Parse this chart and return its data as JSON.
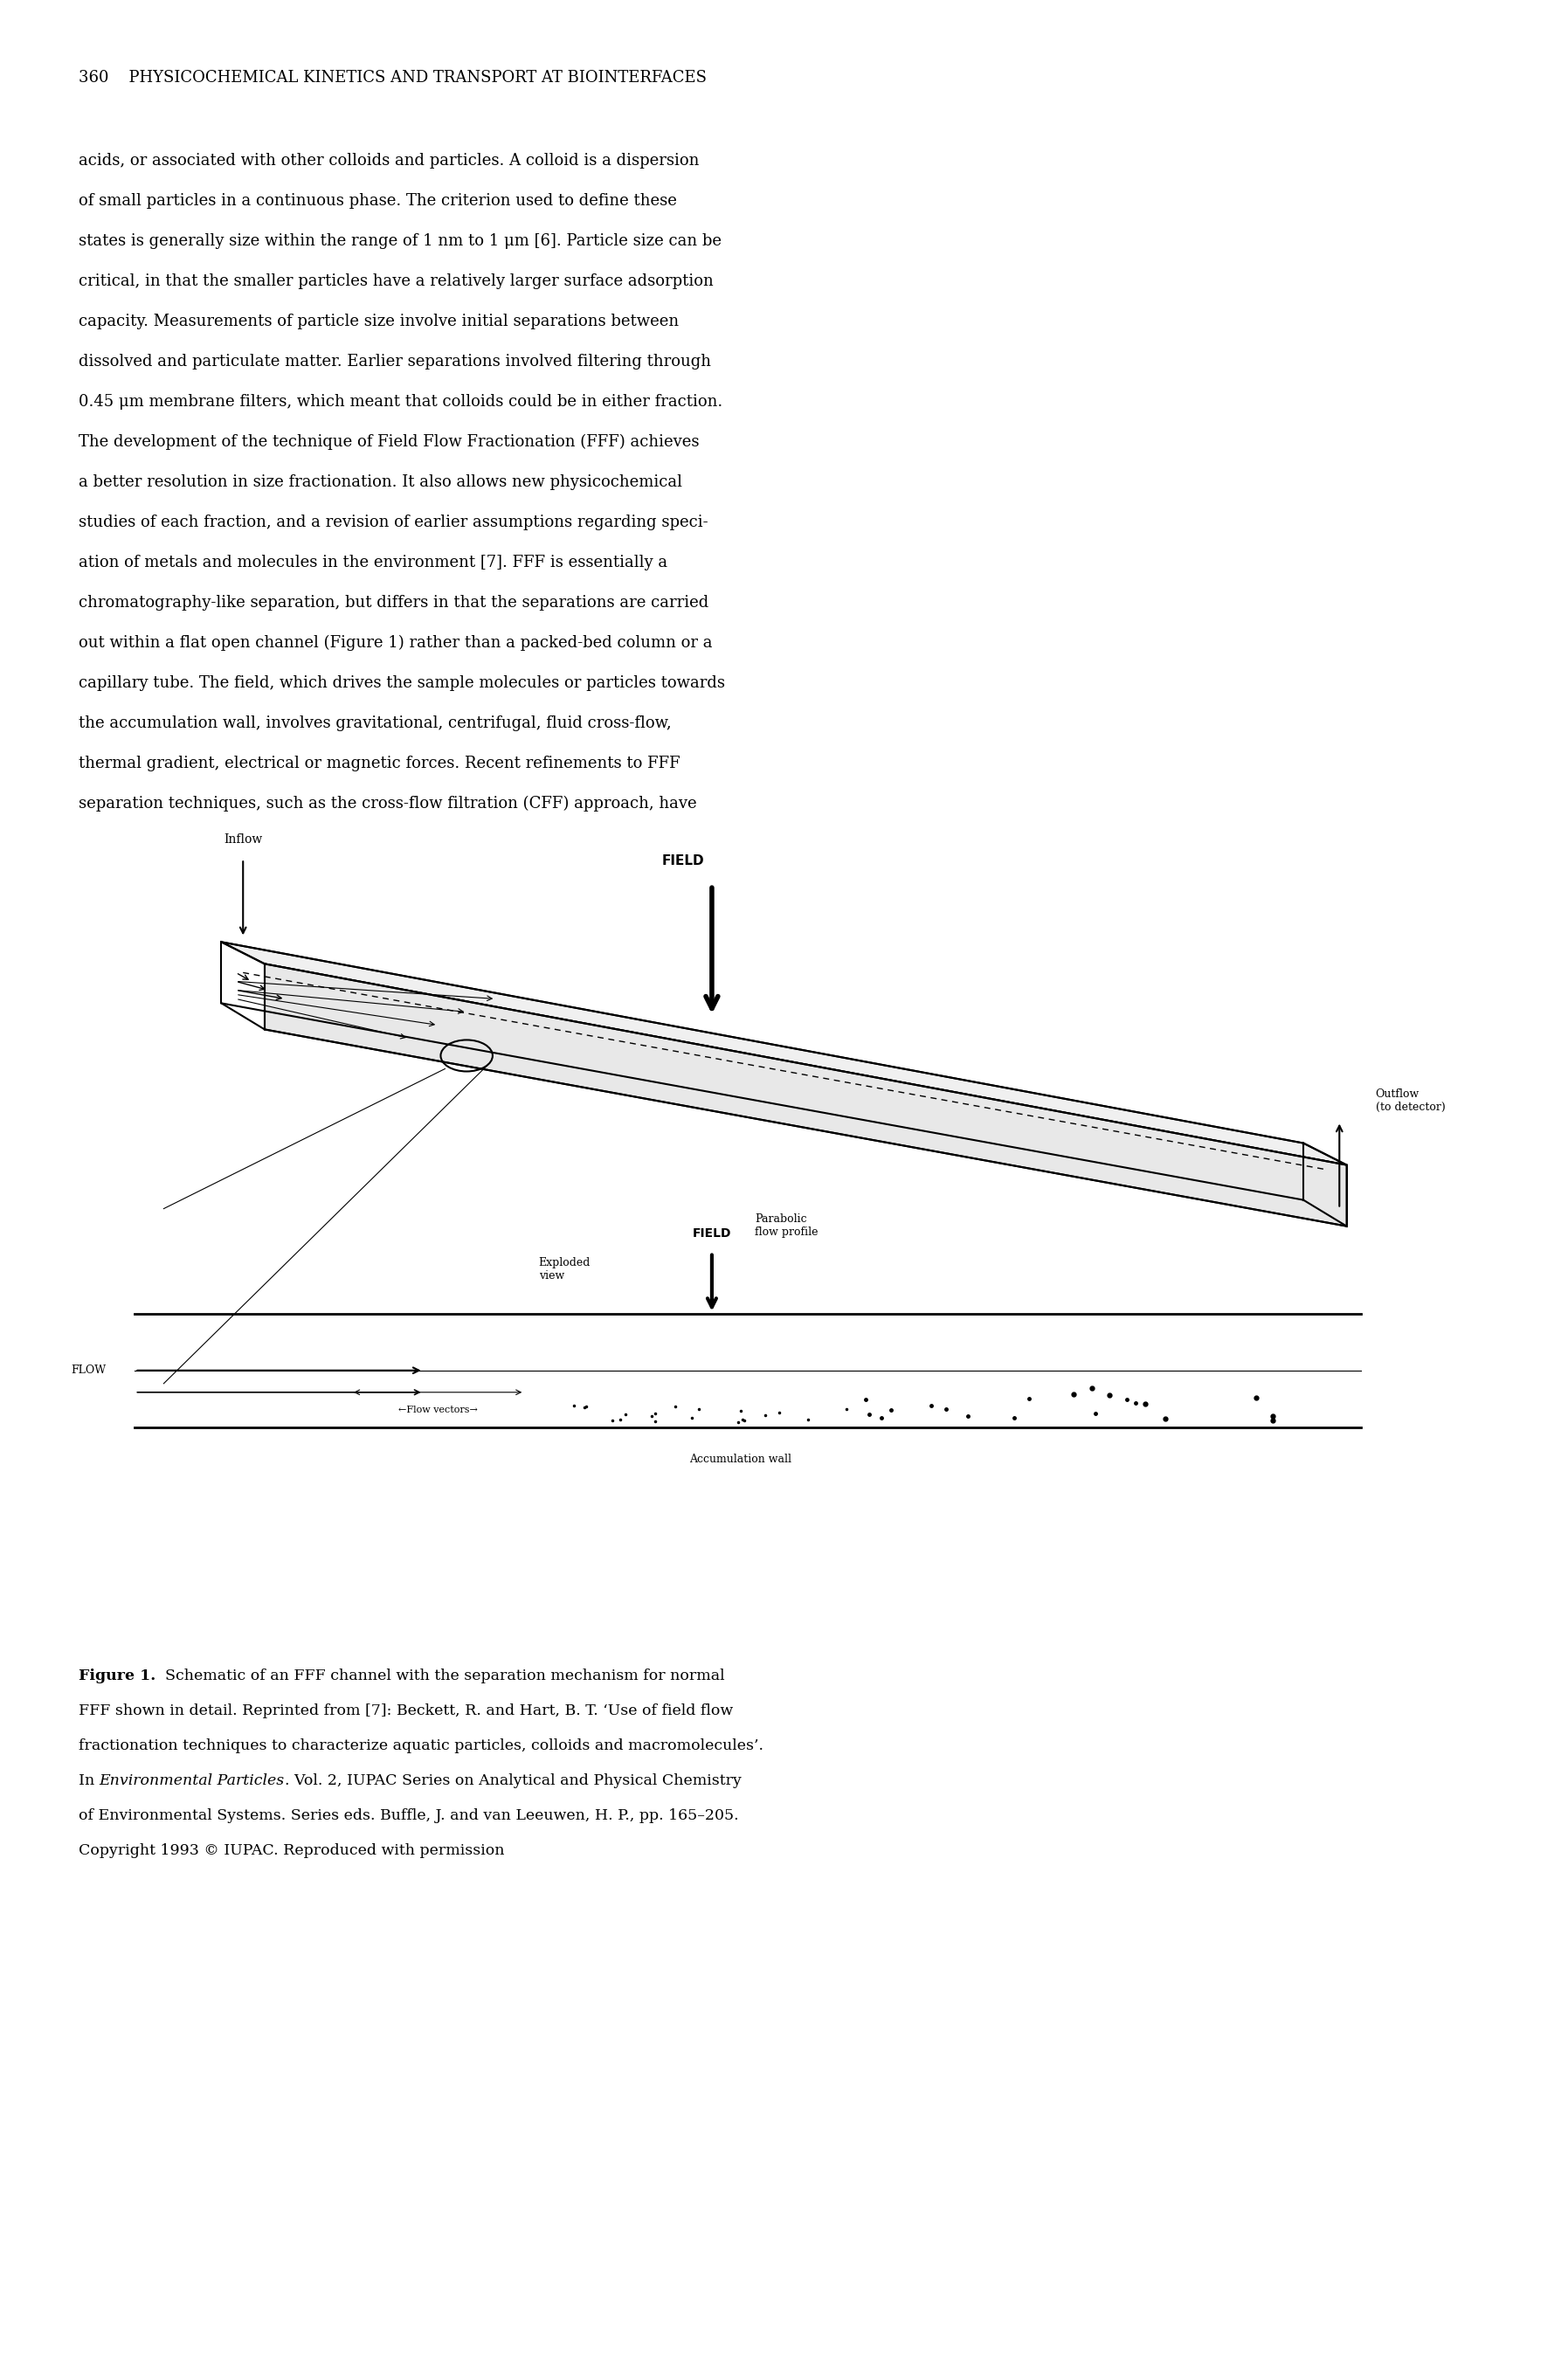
{
  "page_header": "360    PHYSICOCHEMICAL KINETICS AND TRANSPORT AT BIOINTERFACES",
  "body_text": [
    "acids, or associated with other colloids and particles. A colloid is a dispersion",
    "of small particles in a continuous phase. The criterion used to define these",
    "states is generally size within the range of 1 nm to 1 μm [6]. Particle size can be",
    "critical, in that the smaller particles have a relatively larger surface adsorption",
    "capacity. Measurements of particle size involve initial separations between",
    "dissolved and particulate matter. Earlier separations involved filtering through",
    "0.45 μm membrane filters, which meant that colloids could be in either fraction.",
    "The development of the technique of Field Flow Fractionation (FFF) achieves",
    "a better resolution in size fractionation. It also allows new physicochemical",
    "studies of each fraction, and a revision of earlier assumptions regarding speci-",
    "ation of metals and molecules in the environment [7]. FFF is essentially a",
    "chromatography-like separation, but differs in that the separations are carried",
    "out within a flat open channel (Figure 1) rather than a packed-bed column or a",
    "capillary tube. The field, which drives the sample molecules or particles towards",
    "the accumulation wall, involves gravitational, centrifugal, fluid cross-flow,",
    "thermal gradient, electrical or magnetic forces. Recent refinements to FFF",
    "separation techniques, such as the cross-flow filtration (CFF) approach, have"
  ],
  "caption_bold": "Figure 1.",
  "caption_text": "  Schematic of an FFF channel with the separation mechanism for normal FFF shown in detail. Reprinted from [7]: Beckett, R. and Hart, B. T. ‘Use of field flow fractionation techniques to characterize aquatic particles, colloids and macromolecules’. In ",
  "caption_italic": "Environmental Particles",
  "caption_text2": ". Vol. 2, IUPAC Series on Analytical and Physical Chemistry of Environmental Systems. Series eds. Buffle, J. and van Leeuwen, H. P., pp. 165–205. Copyright 1993 © IUPAC. Reproduced with permission",
  "background_color": "#ffffff",
  "text_color": "#000000",
  "font_size_header": 13,
  "font_size_body": 13,
  "font_size_caption": 12.5
}
